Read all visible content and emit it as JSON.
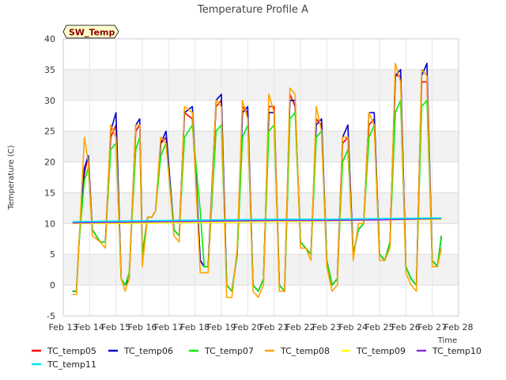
{
  "chart_data": {
    "type": "line",
    "title": "Temperature Profile A",
    "badge": "SW_Temp",
    "xlabel": "Time",
    "ylabel": "Temperature (C)",
    "ylim": [
      -5,
      40
    ],
    "xlim": [
      0,
      15
    ],
    "y_ticks": [
      -5,
      0,
      5,
      10,
      15,
      20,
      25,
      30,
      35,
      40
    ],
    "x_ticks": [
      {
        "v": 0,
        "label": "Feb 13"
      },
      {
        "v": 1,
        "label": "Feb 14"
      },
      {
        "v": 2,
        "label": "Feb 15"
      },
      {
        "v": 3,
        "label": "Feb 16"
      },
      {
        "v": 4,
        "label": "Feb 17"
      },
      {
        "v": 5,
        "label": "Feb 18"
      },
      {
        "v": 6,
        "label": "Feb 19"
      },
      {
        "v": 7,
        "label": "Feb 20"
      },
      {
        "v": 8,
        "label": "Feb 21"
      },
      {
        "v": 9,
        "label": "Feb 22"
      },
      {
        "v": 10,
        "label": "Feb 23"
      },
      {
        "v": 11,
        "label": "Feb 24"
      },
      {
        "v": 12,
        "label": "Feb 25"
      },
      {
        "v": 13,
        "label": "Feb 26"
      },
      {
        "v": 14,
        "label": "Feb 27"
      },
      {
        "v": 15,
        "label": "Feb 28"
      }
    ],
    "grid": true,
    "band_fill": "#f2f2f2",
    "legend_position": "bottom",
    "series": [
      {
        "name": "TC_temp05",
        "color": "#ff0000",
        "x": [
          0.35,
          0.5,
          0.6,
          0.8,
          0.95,
          1.1,
          1.4,
          1.6,
          1.8,
          2.0,
          2.2,
          2.35,
          2.5,
          2.75,
          2.9,
          3.0,
          3.2,
          3.35,
          3.5,
          3.7,
          3.9,
          4.2,
          4.4,
          4.6,
          4.9,
          5.2,
          5.35,
          5.5,
          5.8,
          6.0,
          6.2,
          6.4,
          6.6,
          6.8,
          7.0,
          7.2,
          7.4,
          7.6,
          7.8,
          8.0,
          8.2,
          8.4,
          8.6,
          8.8,
          9.0,
          9.2,
          9.4,
          9.6,
          9.8,
          10.0,
          10.2,
          10.4,
          10.6,
          10.8,
          11.0,
          11.2,
          11.4,
          11.6,
          11.8,
          12.0,
          12.2,
          12.4,
          12.6,
          12.8,
          13.0,
          13.2,
          13.4,
          13.6,
          13.8,
          14.0,
          14.2,
          14.35
        ],
        "values": [
          -1,
          -1,
          7,
          18,
          21,
          9,
          7,
          7,
          24,
          26,
          1,
          0,
          1,
          25,
          26,
          5,
          11,
          11,
          12,
          23,
          24,
          9,
          8,
          28,
          27,
          4,
          3,
          3,
          29,
          30,
          0,
          -1,
          5,
          29,
          28,
          0,
          -1,
          1,
          29,
          29,
          0,
          -1,
          31,
          29,
          7,
          6,
          5,
          27,
          26,
          4,
          0,
          1,
          23,
          24,
          5,
          9,
          10,
          26,
          27,
          5,
          4,
          7,
          34,
          34,
          3,
          1,
          0,
          33,
          33,
          4,
          3,
          8
        ]
      },
      {
        "name": "TC_temp06",
        "color": "#0000cc",
        "x": [
          0.35,
          0.5,
          0.6,
          0.8,
          0.95,
          1.1,
          1.4,
          1.6,
          1.8,
          2.0,
          2.2,
          2.35,
          2.5,
          2.75,
          2.9,
          3.0,
          3.2,
          3.35,
          3.5,
          3.7,
          3.9,
          4.2,
          4.4,
          4.6,
          4.9,
          5.2,
          5.35,
          5.5,
          5.8,
          6.0,
          6.2,
          6.4,
          6.6,
          6.8,
          7.0,
          7.2,
          7.4,
          7.6,
          7.8,
          8.0,
          8.2,
          8.4,
          8.6,
          8.8,
          9.0,
          9.2,
          9.4,
          9.6,
          9.8,
          10.0,
          10.2,
          10.4,
          10.6,
          10.8,
          11.0,
          11.2,
          11.4,
          11.6,
          11.8,
          12.0,
          12.2,
          12.4,
          12.6,
          12.8,
          13.0,
          13.2,
          13.4,
          13.6,
          13.8,
          14.0,
          14.2,
          14.35
        ],
        "values": [
          -1,
          -1,
          7,
          19,
          21,
          9,
          7,
          7,
          25,
          28,
          1,
          0,
          1,
          26,
          27,
          5,
          11,
          11,
          12,
          23,
          25,
          9,
          8,
          28,
          29,
          4,
          3,
          3,
          30,
          31,
          0,
          -1,
          5,
          28,
          29,
          0,
          -1,
          1,
          28,
          28,
          0,
          -1,
          30,
          30,
          7,
          6,
          5,
          26,
          27,
          4,
          0,
          1,
          24,
          26,
          5,
          9,
          10,
          28,
          28,
          5,
          4,
          7,
          34,
          35,
          3,
          1,
          0,
          34,
          36,
          4,
          3,
          8
        ]
      },
      {
        "name": "TC_temp07",
        "color": "#00ee00",
        "x": [
          0.35,
          0.5,
          0.6,
          0.8,
          0.95,
          1.1,
          1.4,
          1.6,
          1.8,
          2.0,
          2.2,
          2.35,
          2.5,
          2.75,
          2.9,
          3.0,
          3.2,
          3.35,
          3.5,
          3.7,
          3.9,
          4.2,
          4.4,
          4.6,
          4.9,
          5.2,
          5.35,
          5.5,
          5.8,
          6.0,
          6.2,
          6.4,
          6.6,
          6.8,
          7.0,
          7.2,
          7.4,
          7.6,
          7.8,
          8.0,
          8.2,
          8.4,
          8.6,
          8.8,
          9.0,
          9.2,
          9.4,
          9.6,
          9.8,
          10.0,
          10.2,
          10.4,
          10.6,
          10.8,
          11.0,
          11.2,
          11.4,
          11.6,
          11.8,
          12.0,
          12.2,
          12.4,
          12.6,
          12.8,
          13.0,
          13.2,
          13.4,
          13.6,
          13.8,
          14.0,
          14.2,
          14.35
        ],
        "values": [
          -1,
          -1,
          7,
          17,
          19,
          9,
          7,
          7,
          22,
          23,
          1,
          0,
          2,
          22,
          24,
          5,
          11,
          11,
          12,
          21,
          23,
          9,
          8,
          24,
          26,
          12,
          3,
          3,
          25,
          26,
          0,
          -1,
          5,
          24,
          26,
          0,
          -1,
          1,
          25,
          26,
          0,
          -1,
          27,
          28,
          7,
          6,
          5,
          24,
          25,
          4,
          0,
          1,
          20,
          22,
          5,
          9,
          10,
          24,
          26,
          5,
          4,
          7,
          28,
          30,
          3,
          1,
          0,
          29,
          30,
          4,
          3,
          8
        ]
      },
      {
        "name": "TC_temp08",
        "color": "#ffa500",
        "x": [
          0.35,
          0.5,
          0.6,
          0.8,
          0.95,
          1.1,
          1.4,
          1.6,
          1.8,
          2.0,
          2.2,
          2.35,
          2.5,
          2.75,
          2.9,
          3.0,
          3.2,
          3.35,
          3.5,
          3.7,
          3.9,
          4.2,
          4.4,
          4.6,
          4.9,
          5.2,
          5.35,
          5.5,
          5.8,
          6.0,
          6.2,
          6.4,
          6.6,
          6.8,
          7.0,
          7.2,
          7.4,
          7.6,
          7.8,
          8.0,
          8.2,
          8.4,
          8.6,
          8.8,
          9.0,
          9.2,
          9.4,
          9.6,
          9.8,
          10.0,
          10.2,
          10.4,
          10.6,
          10.8,
          11.0,
          11.2,
          11.4,
          11.6,
          11.8,
          12.0,
          12.2,
          12.4,
          12.6,
          12.8,
          13.0,
          13.2,
          13.4,
          13.6,
          13.8,
          14.0,
          14.2,
          14.35
        ],
        "values": [
          -1.5,
          -1.5,
          7,
          24,
          20,
          8,
          7,
          6,
          26,
          24,
          1,
          -1,
          1,
          26,
          26,
          3,
          11,
          11,
          12,
          24,
          23,
          8,
          7,
          29,
          28,
          2,
          2,
          2,
          30,
          29,
          -2,
          -2,
          6,
          30,
          27,
          -1,
          -2,
          0,
          31,
          28,
          -1,
          -1,
          32,
          31,
          6,
          6,
          4,
          29,
          25,
          3,
          -1,
          0,
          24,
          24,
          4,
          10,
          10,
          28,
          26,
          4,
          4,
          6,
          36,
          33,
          2,
          0,
          -1,
          35,
          34,
          3,
          3,
          6
        ]
      },
      {
        "name": "TC_temp09",
        "color": "#ffff00",
        "x": [
          0.35,
          2.0,
          4.0,
          6.0,
          8.0,
          10.0,
          12.0,
          14.35
        ],
        "values": [
          10.0,
          10.0,
          10.1,
          10.2,
          10.3,
          10.4,
          10.6,
          10.7
        ]
      },
      {
        "name": "TC_temp10",
        "color": "#8a2be2",
        "x": [
          0.35,
          2.0,
          4.0,
          6.0,
          8.0,
          10.0,
          12.0,
          14.35
        ],
        "values": [
          10.1,
          10.2,
          10.3,
          10.4,
          10.5,
          10.5,
          10.6,
          10.8
        ]
      },
      {
        "name": "TC_temp11",
        "color": "#00e5ee",
        "x": [
          0.35,
          2.0,
          4.0,
          6.0,
          8.0,
          10.0,
          12.0,
          14.35
        ],
        "values": [
          10.3,
          10.4,
          10.5,
          10.6,
          10.7,
          10.7,
          10.8,
          10.9
        ]
      }
    ]
  }
}
